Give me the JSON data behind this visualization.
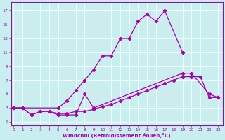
{
  "xlabel": "Windchill (Refroidissement éolien,°C)",
  "background_color": "#c8eef0",
  "line_color": "#aa00aa",
  "x_ticks": [
    0,
    1,
    2,
    3,
    4,
    5,
    6,
    7,
    8,
    9,
    10,
    11,
    12,
    13,
    14,
    15,
    16,
    17,
    18,
    19,
    20,
    21,
    22,
    23
  ],
  "y_ticks": [
    1,
    3,
    5,
    7,
    9,
    11,
    13,
    15,
    17
  ],
  "xlim": [
    -0.3,
    23.5
  ],
  "ylim": [
    0.5,
    18.2
  ],
  "line1_x": [
    0,
    1,
    5,
    6,
    7,
    8,
    9,
    10,
    11,
    12,
    13,
    14,
    15,
    16,
    17,
    19
  ],
  "line1_y": [
    3,
    3,
    3,
    4,
    5.5,
    7,
    8.5,
    10.5,
    10.5,
    13,
    13,
    15.5,
    16.5,
    15.5,
    17,
    11
  ],
  "line2_x": [
    0,
    1,
    2,
    3,
    4,
    5,
    6,
    7,
    8,
    9,
    19,
    20,
    22,
    23
  ],
  "line2_y": [
    3,
    3,
    2,
    2.5,
    2.5,
    2,
    2,
    2,
    5,
    3,
    8,
    8,
    5,
    4.5
  ],
  "line3_x": [
    0,
    1,
    2,
    3,
    4,
    5,
    6,
    7,
    8,
    9,
    10,
    11,
    12,
    13,
    14,
    15,
    16,
    17,
    18,
    19,
    20,
    21,
    22,
    23
  ],
  "line3_y": [
    3,
    3,
    2,
    2.5,
    2.5,
    2.2,
    2.2,
    2.5,
    2.5,
    2.8,
    3.2,
    3.5,
    4,
    4.5,
    5,
    5.5,
    6,
    6.5,
    7,
    7.5,
    7.5,
    7.5,
    4.5,
    4.5
  ]
}
